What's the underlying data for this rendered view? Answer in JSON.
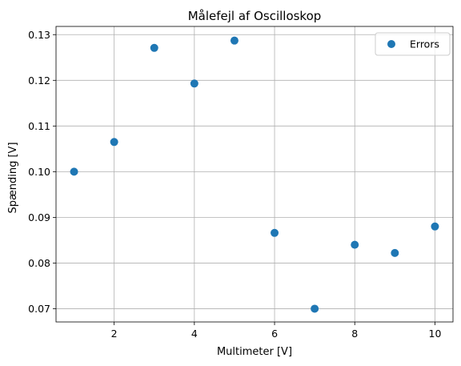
{
  "chart_data": {
    "type": "scatter",
    "title": "Målefejl af Oscilloskop",
    "xlabel": "Multimeter [V]",
    "ylabel": "Spænding [V]",
    "xlim": [
      0.55,
      10.45
    ],
    "ylim": [
      0.0671,
      0.1318
    ],
    "xticks": [
      2,
      4,
      6,
      8,
      10
    ],
    "xtick_labels": [
      "2",
      "4",
      "6",
      "8",
      "10"
    ],
    "yticks": [
      0.07,
      0.08,
      0.09,
      0.1,
      0.11,
      0.12,
      0.13
    ],
    "ytick_labels": [
      "0.07",
      "0.08",
      "0.09",
      "0.10",
      "0.11",
      "0.12",
      "0.13"
    ],
    "grid": true,
    "legend_position": "top-right",
    "marker_color": "#1f77b4",
    "series": [
      {
        "name": "Errors",
        "x": [
          1,
          2,
          3,
          4,
          5,
          6,
          7,
          8,
          9,
          10
        ],
        "y": [
          0.1,
          0.1065,
          0.1271,
          0.1193,
          0.1287,
          0.0866,
          0.07,
          0.084,
          0.0822,
          0.088
        ]
      }
    ]
  }
}
